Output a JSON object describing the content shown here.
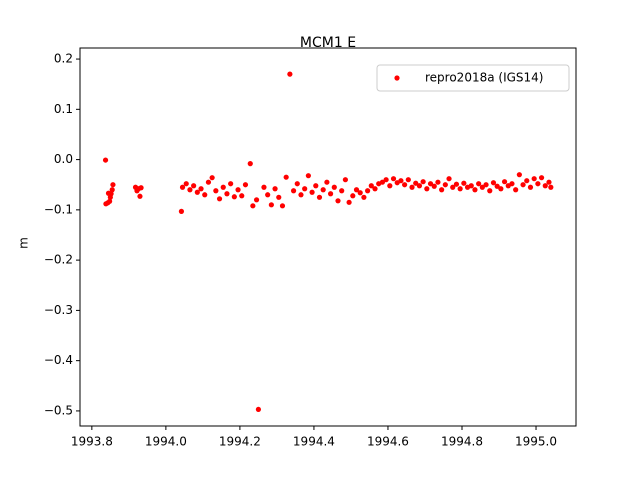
{
  "chart_data": {
    "type": "scatter",
    "title": "MCM1 E",
    "y_label": "m",
    "x": [
      1993.837,
      1993.838,
      1993.843,
      1993.845,
      1993.848,
      1993.85,
      1993.852,
      1993.855,
      1993.857,
      1993.918,
      1993.922,
      1993.926,
      1993.93,
      1993.933,
      1994.042,
      1994.045,
      1994.055,
      1994.065,
      1994.075,
      1994.085,
      1994.095,
      1994.105,
      1994.115,
      1994.125,
      1994.135,
      1994.145,
      1994.155,
      1994.165,
      1994.175,
      1994.185,
      1994.195,
      1994.205,
      1994.215,
      1994.228,
      1994.235,
      1994.245,
      1994.25,
      1994.265,
      1994.275,
      1994.285,
      1994.295,
      1994.305,
      1994.315,
      1994.325,
      1994.335,
      1994.345,
      1994.355,
      1994.365,
      1994.375,
      1994.385,
      1994.395,
      1994.405,
      1994.415,
      1994.425,
      1994.435,
      1994.445,
      1994.455,
      1994.465,
      1994.475,
      1994.485,
      1994.495,
      1994.505,
      1994.515,
      1994.525,
      1994.535,
      1994.545,
      1994.555,
      1994.565,
      1994.575,
      1994.585,
      1994.595,
      1994.605,
      1994.615,
      1994.625,
      1994.635,
      1994.645,
      1994.655,
      1994.665,
      1994.675,
      1994.685,
      1994.695,
      1994.705,
      1994.715,
      1994.725,
      1994.735,
      1994.745,
      1994.755,
      1994.765,
      1994.775,
      1994.785,
      1994.795,
      1994.805,
      1994.815,
      1994.825,
      1994.835,
      1994.845,
      1994.855,
      1994.865,
      1994.875,
      1994.885,
      1994.895,
      1994.905,
      1994.915,
      1994.925,
      1994.935,
      1994.945,
      1994.955,
      1994.965,
      1994.975,
      1994.985,
      1994.995,
      1995.005,
      1995.015,
      1995.025,
      1995.035,
      1995.04
    ],
    "series": [
      {
        "name": "repro2018a (IGS14)",
        "color": "#ff0000",
        "values": [
          -0.001,
          -0.088,
          -0.086,
          -0.067,
          -0.083,
          -0.075,
          -0.068,
          -0.06,
          -0.05,
          -0.055,
          -0.062,
          -0.058,
          -0.073,
          -0.056,
          -0.103,
          -0.055,
          -0.048,
          -0.06,
          -0.052,
          -0.065,
          -0.058,
          -0.07,
          -0.045,
          -0.036,
          -0.062,
          -0.078,
          -0.055,
          -0.068,
          -0.048,
          -0.074,
          -0.06,
          -0.072,
          -0.05,
          -0.008,
          -0.092,
          -0.08,
          -0.497,
          -0.055,
          -0.07,
          -0.09,
          -0.058,
          -0.075,
          -0.092,
          -0.035,
          0.17,
          -0.062,
          -0.048,
          -0.07,
          -0.058,
          -0.032,
          -0.065,
          -0.052,
          -0.075,
          -0.06,
          -0.045,
          -0.068,
          -0.055,
          -0.082,
          -0.062,
          -0.04,
          -0.085,
          -0.072,
          -0.06,
          -0.066,
          -0.075,
          -0.062,
          -0.052,
          -0.058,
          -0.048,
          -0.045,
          -0.04,
          -0.052,
          -0.038,
          -0.046,
          -0.042,
          -0.05,
          -0.04,
          -0.055,
          -0.047,
          -0.052,
          -0.044,
          -0.058,
          -0.048,
          -0.053,
          -0.045,
          -0.06,
          -0.05,
          -0.038,
          -0.055,
          -0.049,
          -0.058,
          -0.047,
          -0.055,
          -0.052,
          -0.06,
          -0.048,
          -0.055,
          -0.05,
          -0.062,
          -0.046,
          -0.053,
          -0.058,
          -0.044,
          -0.052,
          -0.048,
          -0.06,
          -0.03,
          -0.05,
          -0.042,
          -0.055,
          -0.038,
          -0.048,
          -0.036,
          -0.052,
          -0.045,
          -0.055
        ]
      }
    ],
    "xlim": [
      1993.768,
      1995.108
    ],
    "xticks": [
      1993.8,
      {
        "value": 1994.0,
        "label": "1994.0"
      },
      1994.2,
      1994.4,
      1994.6,
      1994.8,
      {
        "value": 1995.0,
        "label": "1995.0"
      }
    ],
    "ylim": [
      -0.53,
      0.222
    ],
    "yticks": [
      {
        "value": -0.5,
        "label": "−0.5"
      },
      {
        "value": -0.4,
        "label": "−0.4"
      },
      {
        "value": -0.3,
        "label": "−0.3"
      },
      {
        "value": -0.2,
        "label": "−0.2"
      },
      {
        "value": -0.1,
        "label": "−0.1"
      },
      {
        "value": 0.0,
        "label": "0.0"
      },
      0.1,
      0.2
    ],
    "legend": "upper right",
    "grid": false
  }
}
